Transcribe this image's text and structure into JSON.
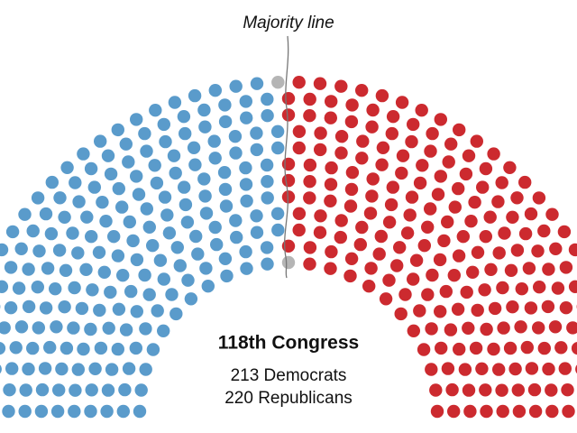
{
  "chart_data": {
    "type": "parliament",
    "annotation": "Majority line",
    "title": "118th Congress",
    "series": [
      {
        "name": "213 Democrats",
        "color": "#5a9bcb",
        "value": 213
      },
      {
        "color": "#b5b5b5",
        "value": 2
      },
      {
        "name": "220 Republicans",
        "color": "#cc2a2f",
        "value": 220
      }
    ]
  }
}
